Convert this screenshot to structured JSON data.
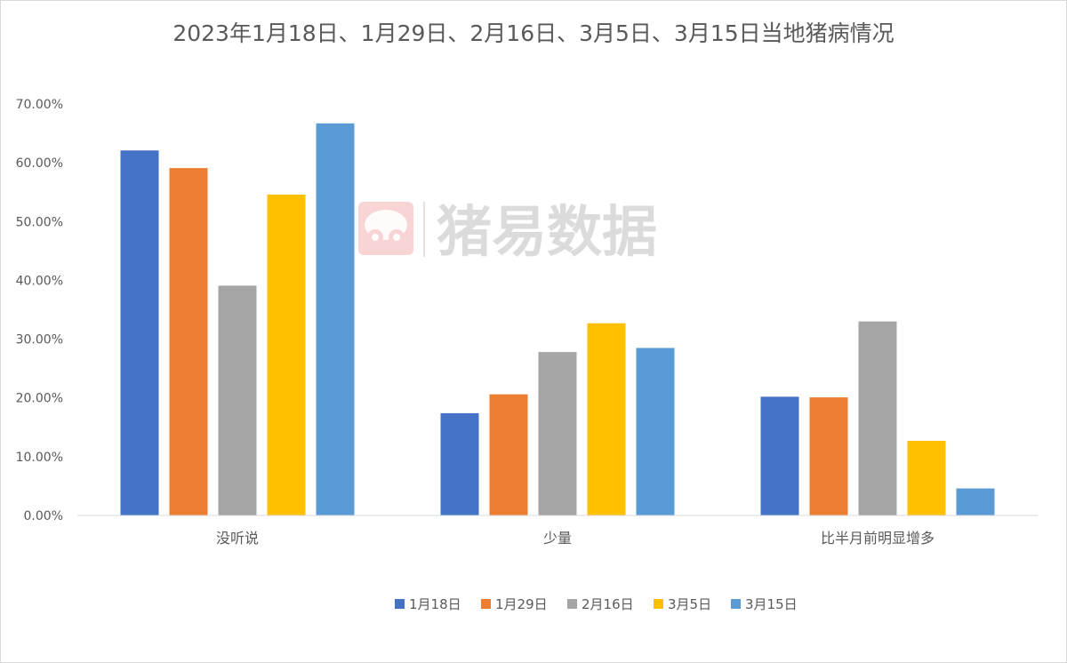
{
  "chart_data": {
    "type": "bar",
    "title": "2023年1月18日、1月29日、2月16日、3月5日、3月15日当地猪病情况",
    "xlabel": "",
    "ylabel": "",
    "ylim": [
      0,
      0.7
    ],
    "yticks": [
      0,
      0.1,
      0.2,
      0.3,
      0.4,
      0.5,
      0.6,
      0.7
    ],
    "ytick_labels": [
      "0.00%",
      "10.00%",
      "20.00%",
      "30.00%",
      "40.00%",
      "50.00%",
      "60.00%",
      "70.00%"
    ],
    "categories": [
      "没听说",
      "少量",
      "比半月前明显增多"
    ],
    "series": [
      {
        "name": "1月18日",
        "color": "#4472C4",
        "values": [
          0.621,
          0.174,
          0.202
        ]
      },
      {
        "name": "1月29日",
        "color": "#ED7D31",
        "values": [
          0.591,
          0.206,
          0.201
        ]
      },
      {
        "name": "2月16日",
        "color": "#A5A5A5",
        "values": [
          0.391,
          0.278,
          0.33
        ]
      },
      {
        "name": "3月5日",
        "color": "#FFC000",
        "values": [
          0.546,
          0.327,
          0.127
        ]
      },
      {
        "name": "3月15日",
        "color": "#5B9BD5",
        "values": [
          0.667,
          0.285,
          0.046
        ]
      }
    ],
    "grid": false,
    "legend_position": "bottom"
  },
  "watermark": {
    "text": "猪易数据",
    "color": "#e05a5a"
  }
}
